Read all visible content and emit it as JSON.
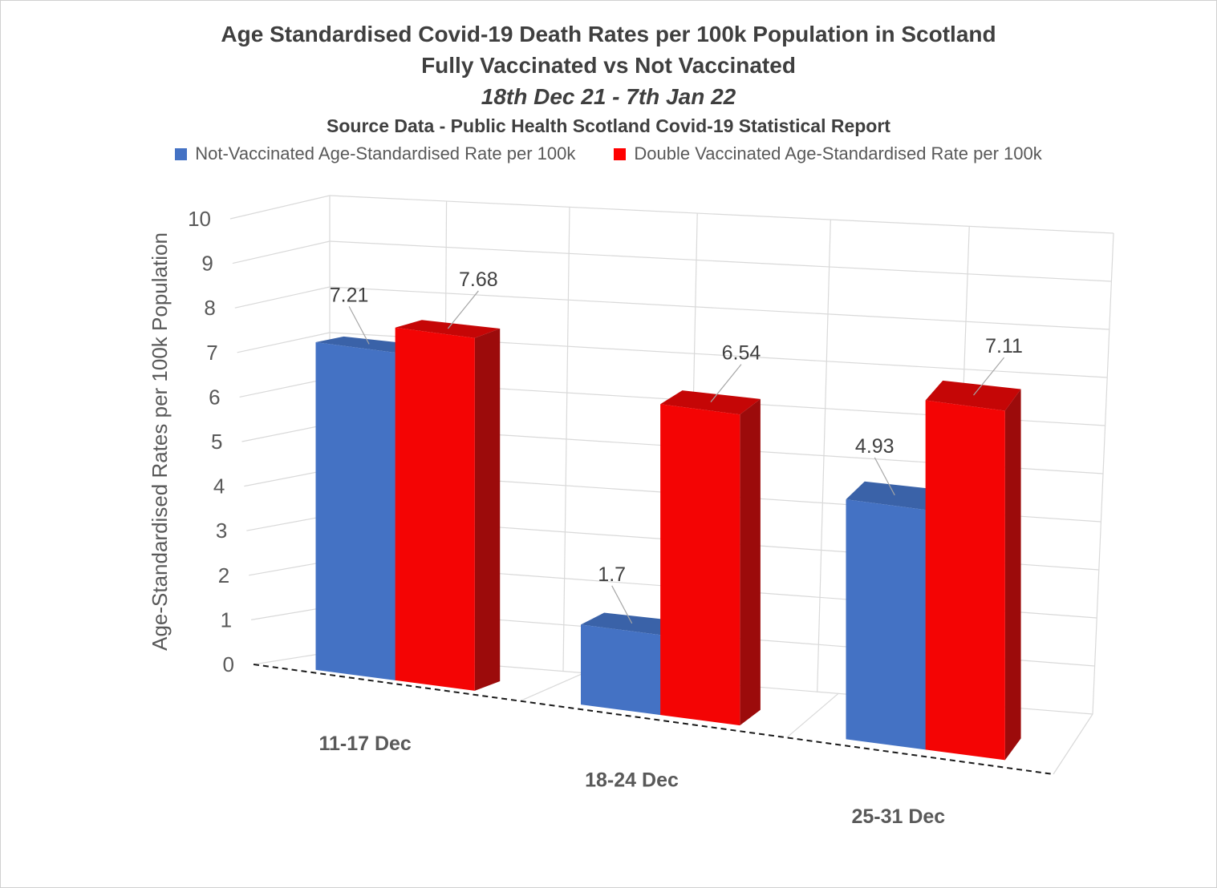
{
  "header": {
    "title_line1": "Age Standardised Covid-19 Death Rates per 100k Population in Scotland",
    "title_line2": "Fully Vaccinated vs Not Vaccinated",
    "title_line3": "18th Dec 21 - 7th Jan 22",
    "source_line": "Source Data - Public Health Scotland Covid-19 Statistical Report"
  },
  "legend": [
    {
      "label": "Not-Vaccinated Age-Standardised Rate per 100k",
      "color": "#4472C4"
    },
    {
      "label": "Double Vaccinated Age-Standardised Rate per 100k",
      "color": "#FF0000"
    }
  ],
  "chart_data": {
    "type": "bar",
    "subtype": "3d-clustered-column",
    "title": "Age Standardised Covid-19 Death Rates per 100k Population in Scotland",
    "categories": [
      "11-17 Dec",
      "18-24 Dec",
      "25-31 Dec"
    ],
    "series": [
      {
        "name": "Not-Vaccinated Age-Standardised Rate per 100k",
        "values": [
          7.21,
          1.7,
          4.93
        ],
        "labels": [
          "7.21",
          "1.7",
          "4.93"
        ],
        "color": "#4472C4",
        "color_top": "#3A62A8",
        "color_side": "#2E5192"
      },
      {
        "name": "Double Vaccinated Age-Standardised Rate per 100k",
        "values": [
          7.68,
          6.54,
          7.11
        ],
        "labels": [
          "7.68",
          "6.54",
          "7.11"
        ],
        "color": "#F40404",
        "color_top": "#C50606",
        "color_side": "#9C0B0B"
      }
    ],
    "xlabel": "",
    "ylabel": "Age-Standardised Rates per 100k Population",
    "ylim": [
      0,
      10
    ],
    "ytick_step": 1,
    "grid": true,
    "legend_position": "top"
  }
}
